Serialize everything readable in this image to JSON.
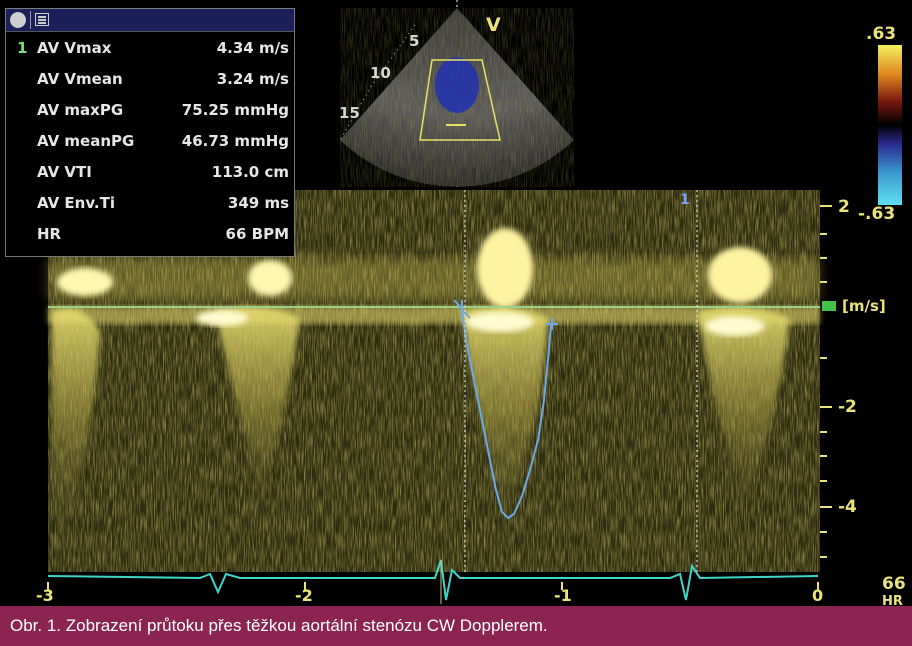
{
  "measurements": {
    "index": "1",
    "rows": [
      {
        "label": "AV Vmax",
        "value": "4.34 m/s"
      },
      {
        "label": "AV Vmean",
        "value": "3.24 m/s"
      },
      {
        "label": "AV maxPG",
        "value": "75.25 mmHg"
      },
      {
        "label": "AV meanPG",
        "value": "46.73 mmHg"
      },
      {
        "label": "AV VTI",
        "value": "113.0 cm"
      },
      {
        "label": "AV Env.Ti",
        "value": "349 ms"
      },
      {
        "label": "HR",
        "value": "66 BPM"
      }
    ]
  },
  "sector": {
    "marker": "V",
    "depths": [
      "5",
      "10",
      "15"
    ]
  },
  "colorbar": {
    "top": ".63",
    "bottom": "-.63"
  },
  "velocity_axis": {
    "ticks": [
      "2",
      "-2",
      "-4"
    ],
    "unit": "[m/s]"
  },
  "time_axis": {
    "ticks": [
      "-3",
      "-2",
      "-1",
      "0"
    ]
  },
  "cursor_label": "1",
  "hr_label": {
    "value": "66",
    "unit": "HR"
  },
  "caption": "Obr. 1. Zobrazení průtoku přes těžkou aortální stenózu CW Dopplerem.",
  "colors": {
    "spectrum": "#e7d45a",
    "ecg": "#3fd6c8",
    "envelope": "#6ea8e6",
    "caption_bg": "#8b2450"
  }
}
